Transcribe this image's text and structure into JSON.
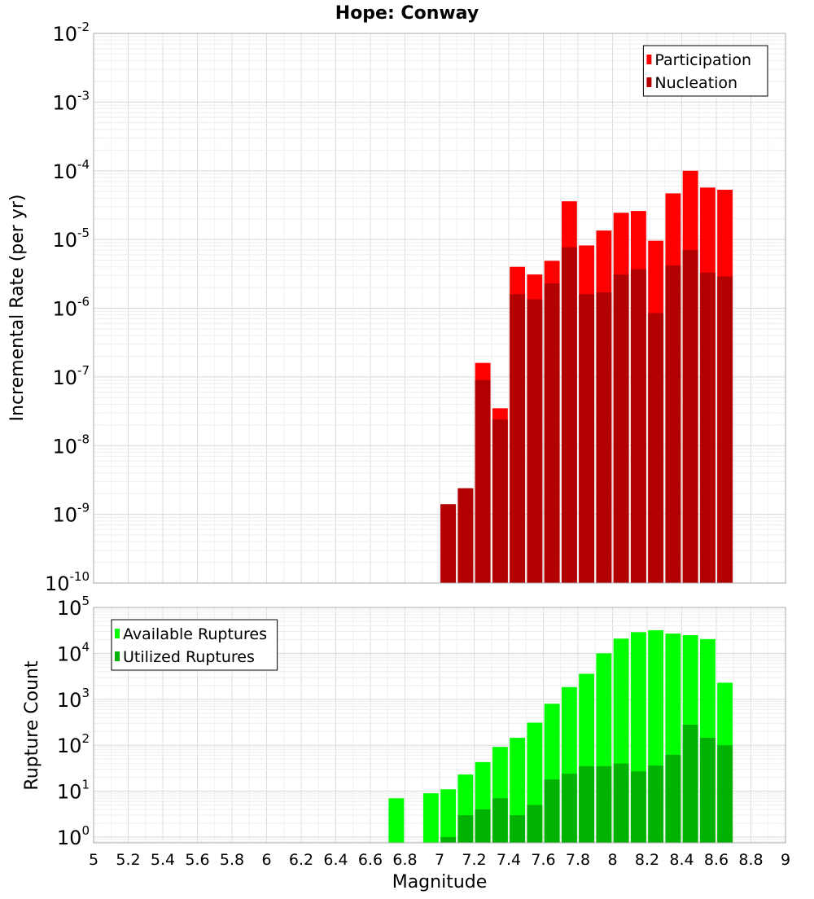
{
  "chart_data": {
    "title": "Hope: Conway",
    "xlabel": "Magnitude",
    "x_ticks": [
      "5",
      "5.2",
      "5.4",
      "5.6",
      "5.8",
      "6",
      "6.2",
      "6.4",
      "6.6",
      "6.8",
      "7",
      "7.2",
      "7.4",
      "7.6",
      "7.8",
      "8",
      "8.2",
      "8.4",
      "8.6",
      "8.8",
      "9"
    ],
    "xlim": [
      5,
      9
    ],
    "bin_width": 0.1,
    "panels": [
      {
        "type": "bar",
        "ylabel": "Incremental Rate (per yr)",
        "yscale": "log",
        "ylim": [
          1e-10,
          0.01
        ],
        "y_tick_exponents": [
          -10,
          -9,
          -8,
          -7,
          -6,
          -5,
          -4,
          -3,
          -2
        ],
        "grid": true,
        "legend_position": "top-right",
        "series": [
          {
            "name": "Participation",
            "color": "#ff0000",
            "x": [
              7.05,
              7.15,
              7.25,
              7.35,
              7.45,
              7.55,
              7.65,
              7.75,
              7.85,
              7.95,
              8.05,
              8.15,
              8.25,
              8.35,
              8.45,
              8.55,
              8.65
            ],
            "values": [
              1.4e-09,
              2.4e-09,
              1.6e-07,
              3.5e-08,
              4e-06,
              3.1e-06,
              4.9e-06,
              3.6e-05,
              8.2e-06,
              1.35e-05,
              2.45e-05,
              2.6e-05,
              9.6e-06,
              4.7e-05,
              0.0001,
              5.7e-05,
              5.3e-05
            ]
          },
          {
            "name": "Nucleation",
            "color": "#b20000",
            "x": [
              7.05,
              7.15,
              7.25,
              7.35,
              7.45,
              7.55,
              7.65,
              7.75,
              7.85,
              7.95,
              8.05,
              8.15,
              8.25,
              8.35,
              8.45,
              8.55,
              8.65
            ],
            "values": [
              1.4e-09,
              2.4e-09,
              9e-08,
              2.4e-08,
              1.6e-06,
              1.35e-06,
              2.3e-06,
              7.7e-06,
              1.6e-06,
              1.7e-06,
              3.1e-06,
              3.7e-06,
              8.5e-07,
              4.2e-06,
              7e-06,
              3.3e-06,
              2.9e-06
            ]
          }
        ]
      },
      {
        "type": "bar",
        "ylabel": "Rupture Count",
        "yscale": "log",
        "ylim": [
          0.75,
          100000
        ],
        "y_tick_exponents": [
          0,
          1,
          2,
          3,
          4,
          5
        ],
        "grid": true,
        "legend_position": "top-left",
        "series": [
          {
            "name": "Available Ruptures",
            "color": "#00ff00",
            "x": [
              6.75,
              6.95,
              7.05,
              7.15,
              7.25,
              7.35,
              7.45,
              7.55,
              7.65,
              7.75,
              7.85,
              7.95,
              8.05,
              8.15,
              8.25,
              8.35,
              8.45,
              8.55,
              8.65
            ],
            "values": [
              7,
              9,
              11,
              23,
              43,
              92,
              145,
              310,
              800,
              1850,
              3600,
              10000,
              21000,
              29000,
              32000,
              27000,
              25000,
              20500,
              2300
            ]
          },
          {
            "name": "Utilized Ruptures",
            "color": "#00b200",
            "x": [
              7.05,
              7.15,
              7.25,
              7.35,
              7.45,
              7.55,
              7.65,
              7.75,
              7.85,
              7.95,
              8.05,
              8.15,
              8.25,
              8.35,
              8.45,
              8.55,
              8.65
            ],
            "values": [
              1,
              3,
              4,
              7,
              3,
              5,
              18,
              24,
              35,
              35,
              40,
              27,
              36,
              62,
              280,
              145,
              100
            ]
          }
        ]
      }
    ]
  }
}
